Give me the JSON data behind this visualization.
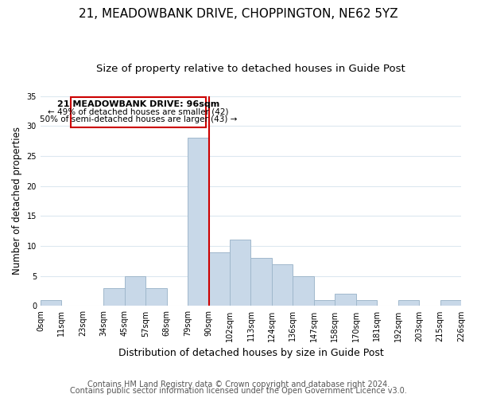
{
  "title": "21, MEADOWBANK DRIVE, CHOPPINGTON, NE62 5YZ",
  "subtitle": "Size of property relative to detached houses in Guide Post",
  "xlabel": "Distribution of detached houses by size in Guide Post",
  "ylabel": "Number of detached properties",
  "bar_labels": [
    "0sqm",
    "11sqm",
    "23sqm",
    "34sqm",
    "45sqm",
    "57sqm",
    "68sqm",
    "79sqm",
    "90sqm",
    "102sqm",
    "113sqm",
    "124sqm",
    "136sqm",
    "147sqm",
    "158sqm",
    "170sqm",
    "181sqm",
    "192sqm",
    "203sqm",
    "215sqm",
    "226sqm"
  ],
  "bar_values": [
    1,
    0,
    0,
    3,
    5,
    3,
    0,
    28,
    9,
    11,
    8,
    7,
    5,
    1,
    2,
    1,
    0,
    1,
    0,
    1
  ],
  "bar_color": "#c8d8e8",
  "bar_edge_color": "#a0b8cc",
  "vline_x": 8,
  "vline_color": "#cc0000",
  "annotation_title": "21 MEADOWBANK DRIVE: 96sqm",
  "annotation_line1": "← 49% of detached houses are smaller (42)",
  "annotation_line2": "50% of semi-detached houses are larger (43) →",
  "annotation_box_color": "#ffffff",
  "annotation_box_edge": "#cc0000",
  "ylim": [
    0,
    35
  ],
  "yticks": [
    0,
    5,
    10,
    15,
    20,
    25,
    30,
    35
  ],
  "footer1": "Contains HM Land Registry data © Crown copyright and database right 2024.",
  "footer2": "Contains public sector information licensed under the Open Government Licence v3.0.",
  "background_color": "#ffffff",
  "grid_color": "#dce8f0",
  "title_fontsize": 11,
  "subtitle_fontsize": 9.5,
  "xlabel_fontsize": 9,
  "ylabel_fontsize": 8.5,
  "footer_fontsize": 7
}
